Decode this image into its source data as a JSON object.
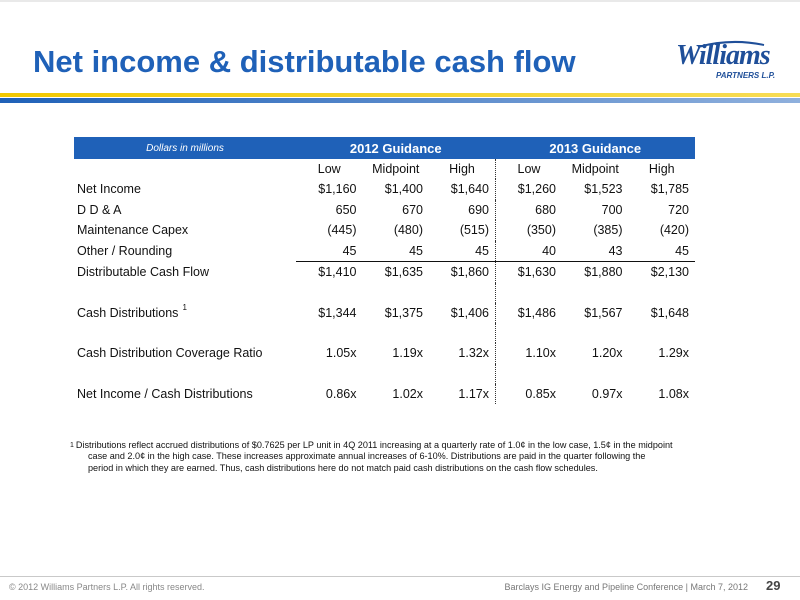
{
  "slide": {
    "title": "Net income & distributable cash flow",
    "logo": {
      "wordmark": "Williams",
      "tagline": "PARTNERS L.P."
    },
    "colors": {
      "title": "#1f61b8",
      "header_band": "#1f61b8",
      "band_yellow": "#f2c800",
      "band_blue": "#1f61b8"
    }
  },
  "table": {
    "units_label": "Dollars in millions",
    "groups": [
      "2012 Guidance",
      "2013 Guidance"
    ],
    "subheaders": [
      "Low",
      "Midpoint",
      "High",
      "Low",
      "Midpoint",
      "High"
    ],
    "rows": [
      {
        "label": "Net Income",
        "values": [
          "$1,160",
          "$1,400",
          "$1,640",
          "$1,260",
          "$1,523",
          "$1,785"
        ]
      },
      {
        "label": "D D & A",
        "values": [
          "650",
          "670",
          "690",
          "680",
          "700",
          "720"
        ]
      },
      {
        "label": "Maintenance Capex",
        "values": [
          "(445)",
          "(480)",
          "(515)",
          "(350)",
          "(385)",
          "(420)"
        ]
      },
      {
        "label": "Other / Rounding",
        "values": [
          "45",
          "45",
          "45",
          "40",
          "43",
          "45"
        ]
      },
      {
        "label": "Distributable Cash Flow",
        "values": [
          "$1,410",
          "$1,635",
          "$1,860",
          "$1,630",
          "$1,880",
          "$2,130"
        ]
      },
      {
        "label": "Cash Distributions",
        "footnote_ref": "1",
        "values": [
          "$1,344",
          "$1,375",
          "$1,406",
          "$1,486",
          "$1,567",
          "$1,648"
        ]
      },
      {
        "label": "Cash Distribution Coverage Ratio",
        "values": [
          "1.05x",
          "1.19x",
          "1.32x",
          "1.10x",
          "1.20x",
          "1.29x"
        ]
      },
      {
        "label": "Net Income / Cash Distributions",
        "values": [
          "0.86x",
          "1.02x",
          "1.17x",
          "0.85x",
          "0.97x",
          "1.08x"
        ]
      }
    ]
  },
  "footnote": {
    "mark": "1",
    "line1": "Distributions reflect accrued distributions of $0.7625 per LP unit in 4Q 2011 increasing at a quarterly rate of 1.0¢ in the low case, 1.5¢ in the midpoint",
    "line2": "case and 2.0¢ in the high case.  These increases approximate annual increases of 6-10%.   Distributions are paid in the quarter following the",
    "line3": "period in which they are earned.  Thus, cash distributions here do not match paid cash distributions on the cash flow schedules."
  },
  "footer": {
    "copyright": "© 2012 Williams Partners L.P.  All rights reserved.",
    "conference": "Barclays IG Energy and Pipeline Conference  |  March 7, 2012",
    "page_number": "29"
  }
}
